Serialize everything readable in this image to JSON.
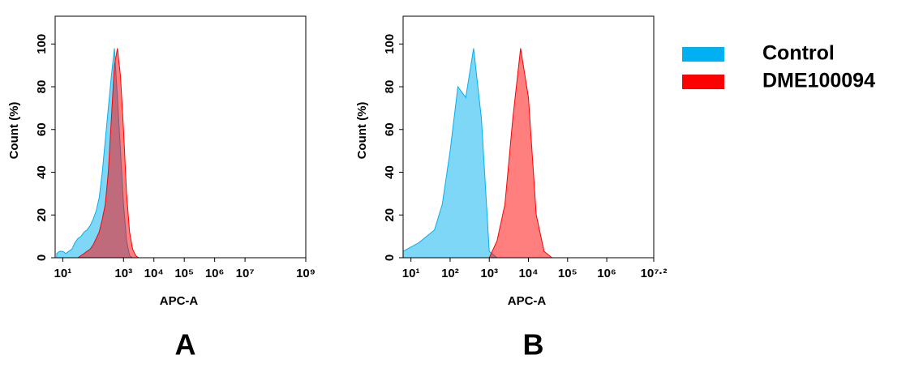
{
  "chart_data": [
    {
      "type": "area",
      "title": "A",
      "x_label": "APC-A",
      "y_label": "Count  (%)",
      "x_scale": "log",
      "xlim": [
        5.62,
        1000000000
      ],
      "ylim": [
        0,
        113
      ],
      "xticks": [
        {
          "value": 10,
          "label": "10¹"
        },
        {
          "value": 1000,
          "label": "10³"
        },
        {
          "value": 10000,
          "label": "10⁴"
        },
        {
          "value": 100000,
          "label": "10⁵"
        },
        {
          "value": 1000000,
          "label": "10⁶"
        },
        {
          "value": 10000000,
          "label": "10⁷"
        },
        {
          "value": 1000000000,
          "label": "10⁹"
        }
      ],
      "yticks": [
        0,
        20,
        40,
        60,
        80,
        100
      ],
      "x": [
        6.3,
        7.9,
        10,
        12.6,
        15.8,
        20,
        25.1,
        31.6,
        39.8,
        50.1,
        63.1,
        79.4,
        100,
        126,
        158,
        200,
        251,
        316,
        398,
        501,
        631,
        794,
        1000,
        1259,
        1585,
        1995,
        2512,
        3162,
        3981
      ],
      "series": [
        {
          "name": "Control",
          "color": "#00b0f0",
          "values": [
            2,
            3,
            3,
            2,
            3,
            4,
            7,
            9,
            10,
            12,
            13,
            15,
            18,
            22,
            28,
            40,
            55,
            70,
            85,
            98,
            75,
            50,
            25,
            8,
            1,
            0,
            0,
            0,
            0
          ]
        },
        {
          "name": "DME100094",
          "color": "#ff0000",
          "values": [
            0,
            0,
            0,
            0,
            0,
            0,
            0,
            0,
            1,
            2,
            3,
            4,
            6,
            9,
            12,
            18,
            25,
            40,
            65,
            90,
            98,
            85,
            60,
            30,
            12,
            4,
            1,
            0,
            0
          ]
        }
      ]
    },
    {
      "type": "area",
      "title": "B",
      "x_label": "APC-A",
      "y_label": "Count  (%)",
      "x_scale": "log",
      "xlim": [
        6.31,
        15848932
      ],
      "ylim": [
        0,
        113
      ],
      "xticks": [
        {
          "value": 10,
          "label": "10¹"
        },
        {
          "value": 100,
          "label": "10²"
        },
        {
          "value": 1000,
          "label": "10³"
        },
        {
          "value": 10000,
          "label": "10⁴"
        },
        {
          "value": 100000,
          "label": "10⁵"
        },
        {
          "value": 1000000,
          "label": "10⁶"
        },
        {
          "value": 15848932,
          "label": "10⁷·²"
        }
      ],
      "yticks": [
        0,
        20,
        40,
        60,
        80,
        100
      ],
      "x": [
        6.3,
        10,
        15.8,
        25.1,
        39.8,
        63.1,
        100,
        158,
        251,
        398,
        631,
        1000,
        1585,
        2512,
        3981,
        6310,
        10000,
        15849,
        25119,
        39811,
        63096,
        100000
      ],
      "series": [
        {
          "color": "#00b0f0",
          "values": [
            3,
            5,
            7,
            10,
            13,
            25,
            50,
            80,
            75,
            98,
            65,
            3,
            0,
            0,
            0,
            0,
            0,
            0,
            0,
            0,
            0,
            0
          ]
        },
        {
          "color": "#ff0000",
          "values": [
            0,
            0,
            0,
            0,
            0,
            0,
            0,
            0,
            0,
            0,
            0,
            0,
            8,
            25,
            65,
            98,
            75,
            20,
            3,
            0,
            0,
            0
          ]
        }
      ]
    }
  ]
}
